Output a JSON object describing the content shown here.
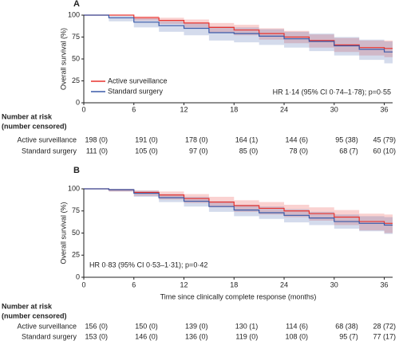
{
  "chart_data": [
    {
      "type": "line",
      "panel": "A",
      "ylabel": "Overall survival (%)",
      "annotation": "HR 1·14 (95% CI 0·74–1·78); p=0·55",
      "legend": "center-left",
      "x": [
        0,
        3,
        6,
        9,
        12,
        15,
        18,
        21,
        24,
        27,
        30,
        33,
        36,
        37
      ],
      "xlim": [
        0,
        37
      ],
      "xticks": [
        0,
        6,
        12,
        18,
        24,
        30,
        36
      ],
      "ylim": [
        0,
        100
      ],
      "yticks": [
        0,
        25,
        50,
        75,
        100
      ],
      "series": [
        {
          "name": "Active surveillance",
          "color": "#e8332e",
          "values": [
            100,
            100,
            97,
            94,
            91,
            86,
            83,
            79,
            75,
            71,
            66,
            63,
            62,
            62
          ],
          "lower": [
            100,
            100,
            94,
            90,
            86,
            80,
            77,
            72,
            68,
            63,
            58,
            54,
            52,
            52
          ],
          "upper": [
            100,
            100,
            99,
            97,
            95,
            91,
            89,
            85,
            82,
            78,
            74,
            71,
            71,
            71
          ]
        },
        {
          "name": "Standard surgery",
          "color": "#3a5aa8",
          "values": [
            100,
            97,
            92,
            88,
            85,
            80,
            79,
            76,
            73,
            70,
            65,
            61,
            58,
            58
          ],
          "lower": [
            100,
            93,
            86,
            81,
            77,
            71,
            69,
            66,
            63,
            59,
            54,
            49,
            45,
            45
          ],
          "upper": [
            100,
            99,
            96,
            93,
            91,
            87,
            86,
            84,
            81,
            79,
            75,
            72,
            70,
            70
          ]
        }
      ],
      "risk_table": {
        "title": [
          "Number at risk",
          "(number censored)"
        ],
        "rows": [
          {
            "name": "Active surveillance",
            "values": [
              "198 (0)",
              "191 (0)",
              "178 (0)",
              "164 (1)",
              "144 (6)",
              "95 (38)",
              "45 (79)"
            ]
          },
          {
            "name": "Standard surgery",
            "values": [
              "111 (0)",
              "105 (0)",
              "97 (0)",
              "85 (0)",
              "78 (0)",
              "68 (7)",
              "60 (10)"
            ]
          }
        ]
      }
    },
    {
      "type": "line",
      "panel": "B",
      "ylabel": "Overall survival (%)",
      "xlabel": "Time since clinically complete response (months)",
      "annotation": "HR 0·83 (95% CI 0·53–1·31); p=0·42",
      "x": [
        0,
        3,
        6,
        9,
        12,
        15,
        18,
        21,
        24,
        27,
        30,
        33,
        36,
        37
      ],
      "xlim": [
        0,
        37
      ],
      "xticks": [
        0,
        6,
        12,
        18,
        24,
        30,
        36
      ],
      "ylim": [
        0,
        100
      ],
      "yticks": [
        0,
        25,
        50,
        75,
        100
      ],
      "series": [
        {
          "name": "Active surveillance",
          "color": "#e8332e",
          "values": [
            100,
            99,
            96,
            93,
            89,
            85,
            81,
            78,
            75,
            72,
            68,
            63,
            61,
            61
          ],
          "lower": [
            100,
            97,
            92,
            88,
            84,
            79,
            74,
            71,
            68,
            64,
            59,
            53,
            50,
            50
          ],
          "upper": [
            100,
            100,
            98,
            97,
            94,
            91,
            87,
            85,
            82,
            79,
            76,
            72,
            71,
            71
          ]
        },
        {
          "name": "Standard surgery",
          "color": "#3a5aa8",
          "values": [
            100,
            99,
            95,
            90,
            86,
            80,
            76,
            73,
            70,
            67,
            63,
            61,
            59,
            59
          ],
          "lower": [
            100,
            97,
            91,
            85,
            80,
            74,
            69,
            66,
            62,
            59,
            55,
            52,
            49,
            49
          ],
          "upper": [
            100,
            100,
            98,
            94,
            91,
            86,
            82,
            80,
            77,
            74,
            71,
            69,
            68,
            68
          ]
        }
      ],
      "risk_table": {
        "title": [
          "Number at risk",
          "(number censored)"
        ],
        "rows": [
          {
            "name": "Active surveillance",
            "values": [
              "156 (0)",
              "150 (0)",
              "139 (0)",
              "130 (1)",
              "114 (6)",
              "68 (38)",
              "28 (72)"
            ]
          },
          {
            "name": "Standard surgery",
            "values": [
              "153 (0)",
              "146 (0)",
              "136 (0)",
              "119 (0)",
              "108 (0)",
              "95 (7)",
              "77 (17)"
            ]
          }
        ]
      }
    }
  ]
}
